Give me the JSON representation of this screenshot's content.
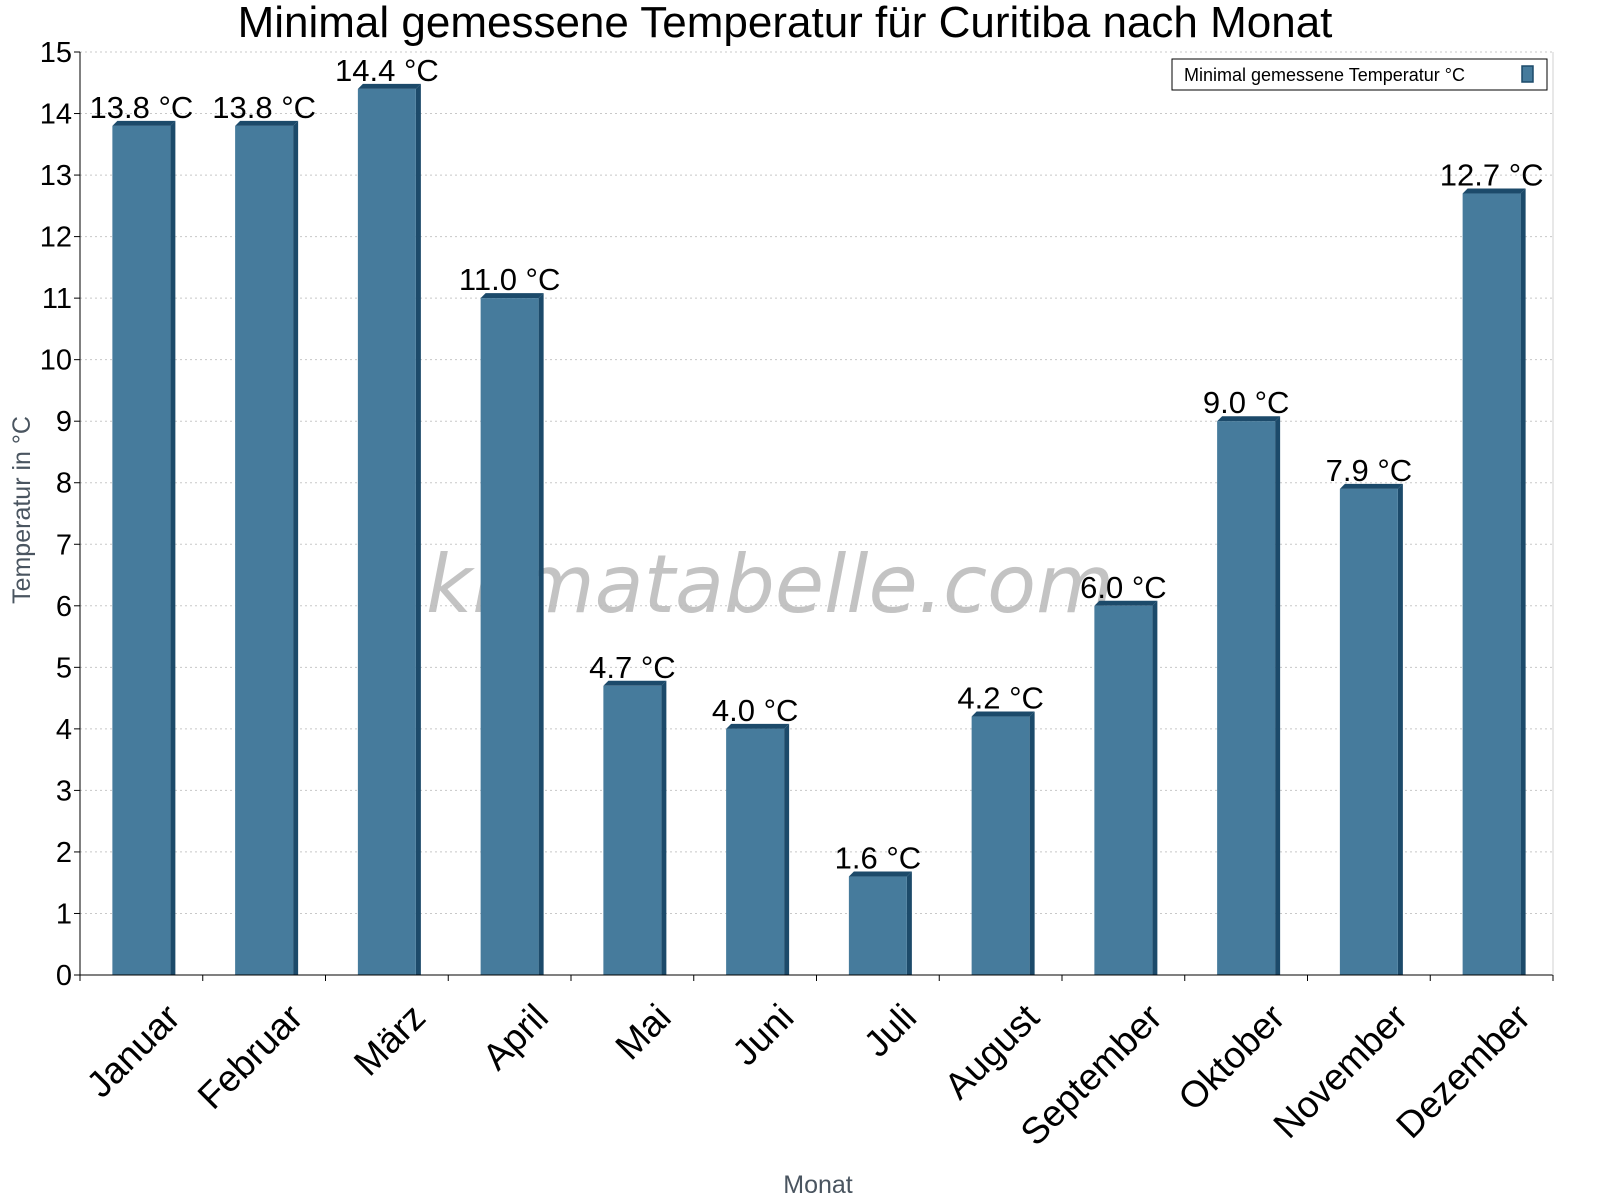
{
  "chart_data": {
    "type": "bar",
    "title": "Minimal gemessene Temperatur für Curitiba nach Monat",
    "xlabel": "Monat",
    "ylabel": "Temperatur in °C",
    "categories": [
      "Januar",
      "Februar",
      "März",
      "April",
      "Mai",
      "Juni",
      "Juli",
      "August",
      "September",
      "Oktober",
      "November",
      "Dezember"
    ],
    "series": [
      {
        "name": "Minimal gemessene Temperatur °C",
        "values": [
          13.8,
          13.8,
          14.4,
          11.0,
          4.7,
          4.0,
          1.6,
          4.2,
          6.0,
          9.0,
          7.9,
          12.7
        ],
        "labels": [
          "13.8 °C",
          "13.8 °C",
          "14.4 °C",
          "11.0 °C",
          "4.7 °C",
          "4.0 °C",
          "1.6 °C",
          "4.2 °C",
          "6.0 °C",
          "9.0 °C",
          "7.9 °C",
          "12.7 °C"
        ]
      }
    ],
    "ylim": [
      0,
      15
    ],
    "yticks": [
      "0",
      "1",
      "2",
      "3",
      "4",
      "5",
      "6",
      "7",
      "8",
      "9",
      "10",
      "11",
      "12",
      "13",
      "14",
      "15"
    ],
    "grid": true,
    "legend_position": "top-right",
    "colors": {
      "bar": "#467b9c",
      "bar_dark": "#1c4a6a"
    }
  },
  "watermark": "klimatabelle.com"
}
